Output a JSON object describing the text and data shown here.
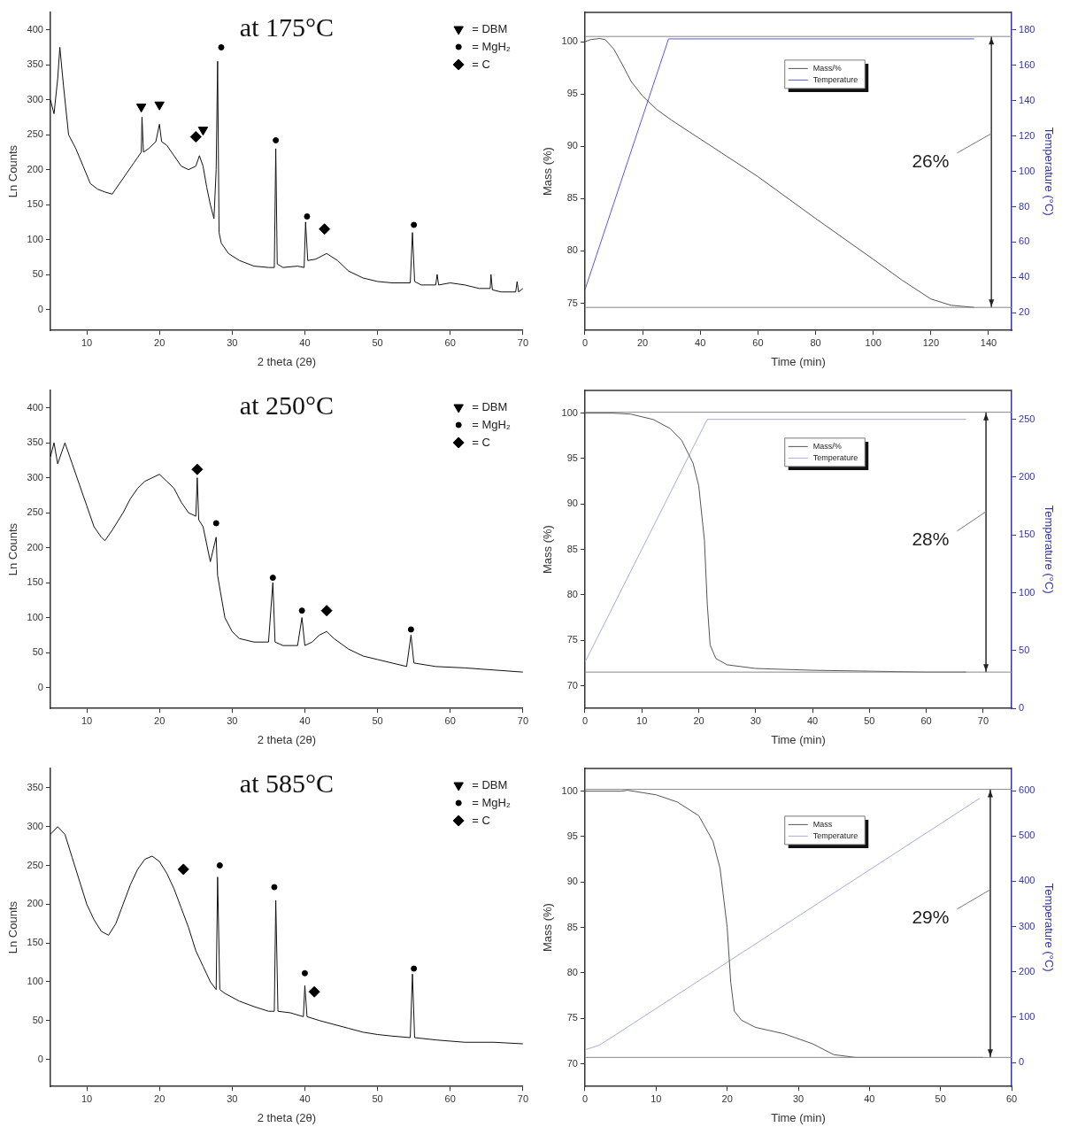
{
  "chart_data": [
    {
      "type": "line",
      "title": "at 175°C",
      "xlabel": "2 theta (2θ)",
      "ylabel": "Ln Counts",
      "xlim": [
        5,
        70
      ],
      "xticks": [
        10,
        20,
        30,
        40,
        50,
        60,
        70
      ],
      "ylim": [
        -30,
        425
      ],
      "yticks": [
        0,
        50,
        100,
        150,
        200,
        250,
        300,
        350,
        400
      ],
      "grid": false,
      "legend": "top right",
      "marker": "none",
      "series": [
        {
          "color": "#111111",
          "x": [
            5,
            5.5,
            6,
            6.3,
            6.8,
            7.5,
            8.5,
            9.5,
            10.5,
            11.5,
            12.5,
            13.5,
            14.5,
            15.5,
            16.5,
            17.5,
            17.6,
            17.8,
            18.5,
            19.5,
            20,
            20.3,
            21,
            22,
            23,
            24,
            25,
            25.5,
            26,
            26.5,
            27,
            27.5,
            27.8,
            28,
            28.2,
            28.5,
            29.5,
            31,
            33,
            35,
            35.8,
            36,
            36.2,
            37,
            39,
            39.9,
            40.1,
            40.4,
            41.5,
            43,
            44.5,
            46,
            48,
            50,
            52,
            54.5,
            54.8,
            55.1,
            56,
            58,
            58.2,
            58.4,
            60,
            62,
            64,
            65.5,
            65.6,
            65.8,
            67,
            69,
            69.2,
            69.4,
            70
          ],
          "values": [
            300,
            280,
            330,
            375,
            320,
            250,
            230,
            205,
            180,
            172,
            168,
            165,
            180,
            195,
            210,
            225,
            275,
            225,
            230,
            240,
            265,
            240,
            235,
            220,
            205,
            200,
            205,
            220,
            205,
            175,
            150,
            130,
            200,
            355,
            110,
            95,
            80,
            70,
            62,
            60,
            60,
            230,
            65,
            60,
            62,
            60,
            125,
            70,
            72,
            80,
            70,
            55,
            45,
            40,
            38,
            38,
            110,
            40,
            35,
            35,
            50,
            35,
            38,
            35,
            30,
            30,
            50,
            28,
            25,
            25,
            40,
            25,
            30
          ]
        },
        {
          "type": "scatter",
          "name": "= DBM",
          "color": "#000000",
          "marker": "triangle",
          "x": [
            17.5,
            20,
            26
          ],
          "values": [
            290,
            293,
            257
          ]
        },
        {
          "type": "scatter",
          "name": "= MgH₂",
          "color": "#000000",
          "marker": "circle",
          "x": [
            28.5,
            36,
            40.3,
            55
          ],
          "values": [
            375,
            242,
            133,
            121
          ]
        },
        {
          "type": "scatter",
          "name": "= C",
          "color": "#000000",
          "marker": "diamond",
          "x": [
            25,
            42.7
          ],
          "values": [
            247,
            115
          ]
        }
      ]
    },
    {
      "type": "line",
      "xlabel": "Time (min)",
      "ylabel": "Mass (%)",
      "y2label": "Temperature (°C)",
      "xlim": [
        0,
        148
      ],
      "xticks": [
        0,
        20,
        40,
        60,
        80,
        100,
        120,
        140
      ],
      "ylim": [
        72.4,
        102.8
      ],
      "yticks": [
        75,
        80,
        85,
        90,
        95,
        100
      ],
      "y2lim": [
        10,
        190
      ],
      "y2ticks": [
        20,
        40,
        60,
        80,
        100,
        120,
        140,
        160,
        180
      ],
      "grid": false,
      "legend": "top",
      "marker": "none",
      "series": [
        {
          "name": "Mass/%",
          "color": "#555555",
          "x": [
            0,
            2,
            5,
            7,
            10,
            13,
            16,
            20,
            25,
            30,
            40,
            60,
            80,
            100,
            110,
            120,
            127,
            135
          ],
          "values": [
            100,
            100.2,
            100.3,
            100.2,
            99.3,
            97.8,
            96.2,
            94.8,
            93.5,
            92.5,
            90.7,
            87.1,
            83.1,
            79.2,
            77.2,
            75.4,
            74.8,
            74.6
          ]
        },
        {
          "name": "Temperature",
          "color": "#5a5ad0",
          "axis": "y2",
          "x": [
            0,
            29,
            135
          ],
          "values": [
            33,
            175,
            175
          ]
        },
        {
          "color": "#444444",
          "x": [
            141,
            141
          ],
          "values": [
            100.5,
            74.6
          ]
        }
      ],
      "ref_lines": [
        {
          "axis": "y",
          "value": 100.5,
          "color": "#888888"
        },
        {
          "axis": "y",
          "value": 74.6,
          "color": "#888888"
        }
      ],
      "annotations": [
        "26%"
      ]
    },
    {
      "type": "line",
      "title": "at 250°C",
      "xlabel": "2 theta (2θ)",
      "ylabel": "Ln Counts",
      "xlim": [
        5,
        70
      ],
      "xticks": [
        10,
        20,
        30,
        40,
        50,
        60,
        70
      ],
      "ylim": [
        -30,
        425
      ],
      "yticks": [
        0,
        50,
        100,
        150,
        200,
        250,
        300,
        350,
        400
      ],
      "grid": false,
      "legend": "top right",
      "marker": "none",
      "series": [
        {
          "color": "#111111",
          "x": [
            5,
            5.5,
            6,
            7,
            8,
            9,
            10,
            11,
            12,
            12.5,
            13.5,
            15,
            16,
            17,
            18,
            19,
            20,
            21,
            22,
            23,
            24,
            25,
            25.2,
            25.4,
            26,
            27,
            27.8,
            28,
            29,
            30,
            31,
            33,
            35,
            35.6,
            35.9,
            37,
            39,
            39.6,
            40,
            41,
            42,
            43,
            44,
            46,
            48,
            50,
            52,
            54,
            54.6,
            55,
            58,
            62,
            66,
            70
          ],
          "values": [
            330,
            350,
            320,
            350,
            320,
            290,
            260,
            230,
            215,
            210,
            225,
            250,
            270,
            285,
            295,
            300,
            305,
            295,
            285,
            265,
            250,
            245,
            300,
            240,
            230,
            180,
            215,
            160,
            100,
            80,
            70,
            65,
            65,
            150,
            65,
            60,
            60,
            100,
            60,
            65,
            75,
            80,
            70,
            55,
            45,
            40,
            35,
            30,
            75,
            35,
            30,
            28,
            25,
            22
          ]
        },
        {
          "type": "scatter",
          "name": "= DBM",
          "color": "#000000",
          "marker": "triangle"
        },
        {
          "type": "scatter",
          "name": "= MgH₂",
          "color": "#000000",
          "marker": "circle",
          "x": [
            27.8,
            35.6,
            39.6,
            54.6
          ],
          "values": [
            235,
            157,
            110,
            83
          ]
        },
        {
          "type": "scatter",
          "name": "= C",
          "color": "#000000",
          "marker": "diamond",
          "x": [
            25.2,
            43
          ],
          "values": [
            312,
            110
          ]
        }
      ]
    },
    {
      "type": "line",
      "xlabel": "Time (min)",
      "ylabel": "Mass (%)",
      "y2label": "Temperature (°C)",
      "xlim": [
        0,
        75
      ],
      "xticks": [
        0,
        10,
        20,
        30,
        40,
        50,
        60,
        70
      ],
      "ylim": [
        67.5,
        102.5
      ],
      "yticks": [
        70,
        75,
        80,
        85,
        90,
        95,
        100
      ],
      "y2lim": [
        0,
        275
      ],
      "y2ticks": [
        0,
        50,
        100,
        150,
        200,
        250
      ],
      "grid": false,
      "legend": "top",
      "marker": "none",
      "series": [
        {
          "name": "Mass/%",
          "color": "#555555",
          "x": [
            0,
            5,
            8,
            12,
            15,
            17,
            19,
            20,
            21,
            21.5,
            22,
            23,
            25,
            30,
            40,
            50,
            60,
            67
          ],
          "values": [
            100,
            100,
            99.9,
            99.3,
            98.3,
            97,
            94.5,
            92,
            86,
            79,
            74.5,
            73,
            72.3,
            71.9,
            71.7,
            71.6,
            71.5,
            71.5
          ]
        },
        {
          "name": "Temperature",
          "color": "#a8acdc",
          "axis": "y2",
          "x": [
            0,
            21.5,
            67
          ],
          "values": [
            40,
            250,
            250
          ]
        },
        {
          "color": "#444444",
          "x": [
            70.5,
            70.5
          ],
          "values": [
            100.1,
            71.5
          ]
        }
      ],
      "ref_lines": [
        {
          "axis": "y",
          "value": 100.1,
          "color": "#888888"
        },
        {
          "axis": "y",
          "value": 71.5,
          "color": "#888888"
        }
      ],
      "annotations": [
        "28%"
      ]
    },
    {
      "type": "line",
      "title": "at 585°C",
      "xlabel": "2 theta (2θ)",
      "ylabel": "Ln Counts",
      "xlim": [
        5,
        70
      ],
      "xticks": [
        10,
        20,
        30,
        40,
        50,
        60,
        70
      ],
      "ylim": [
        -35,
        375
      ],
      "yticks": [
        0,
        50,
        100,
        150,
        200,
        250,
        300,
        350
      ],
      "grid": false,
      "legend": "top right",
      "marker": "none",
      "series": [
        {
          "color": "#111111",
          "x": [
            5,
            6,
            7,
            8,
            9,
            10,
            11,
            12,
            13,
            14,
            15,
            16,
            17,
            18,
            19,
            20,
            21,
            22,
            23,
            24,
            25,
            26,
            27,
            27.8,
            28,
            28.3,
            29,
            31,
            33,
            35,
            35.8,
            36,
            36.3,
            38,
            39.8,
            40,
            40.3,
            42,
            44,
            46,
            48,
            50,
            52,
            54.5,
            54.8,
            55.1,
            58,
            62,
            66,
            70
          ],
          "values": [
            290,
            300,
            290,
            260,
            230,
            200,
            180,
            165,
            160,
            175,
            200,
            225,
            245,
            258,
            262,
            255,
            240,
            220,
            195,
            170,
            140,
            120,
            100,
            90,
            235,
            90,
            85,
            75,
            68,
            62,
            62,
            205,
            62,
            60,
            55,
            95,
            55,
            50,
            45,
            40,
            35,
            32,
            30,
            28,
            110,
            28,
            25,
            22,
            22,
            20
          ]
        },
        {
          "type": "scatter",
          "name": "= DBM",
          "color": "#000000",
          "marker": "triangle"
        },
        {
          "type": "scatter",
          "name": "= MgH₂",
          "color": "#000000",
          "marker": "circle",
          "x": [
            28.3,
            35.8,
            40,
            55
          ],
          "values": [
            250,
            222,
            111,
            117
          ]
        },
        {
          "type": "scatter",
          "name": "= C",
          "color": "#000000",
          "marker": "diamond",
          "x": [
            23.3,
            41.3
          ],
          "values": [
            245,
            87
          ]
        }
      ]
    },
    {
      "type": "line",
      "xlabel": "Time (min)",
      "ylabel": "Mass (%)",
      "y2label": "Temperature (°C)",
      "xlim": [
        0,
        60
      ],
      "xticks": [
        0,
        10,
        20,
        30,
        40,
        50,
        60
      ],
      "ylim": [
        67.5,
        102.5
      ],
      "yticks": [
        70,
        75,
        80,
        85,
        90,
        95,
        100
      ],
      "y2lim": [
        -53,
        649
      ],
      "y2ticks": [
        0,
        100,
        200,
        300,
        400,
        500,
        600
      ],
      "grid": false,
      "legend": "top",
      "marker": "none",
      "series": [
        {
          "name": "Mass",
          "color": "#555555",
          "x": [
            0,
            5,
            6,
            10,
            13,
            16,
            18,
            19,
            20,
            20.5,
            21,
            22,
            24,
            28,
            32,
            35,
            38,
            45,
            56
          ],
          "values": [
            100,
            100,
            100.1,
            99.6,
            98.8,
            97.3,
            94.5,
            91.5,
            85,
            79,
            75.8,
            74.8,
            74,
            73.3,
            72.2,
            71,
            70.7,
            70.7,
            70.7
          ]
        },
        {
          "name": "Temperature",
          "color": "#a8acdc",
          "axis": "y2",
          "x": [
            0,
            2,
            4,
            55.5
          ],
          "values": [
            28,
            38,
            58,
            583
          ]
        },
        {
          "color": "#444444",
          "x": [
            57,
            57
          ],
          "values": [
            100.2,
            70.7
          ]
        }
      ],
      "ref_lines": [
        {
          "axis": "y",
          "value": 100.2,
          "color": "#888888"
        },
        {
          "axis": "y",
          "value": 70.7,
          "color": "#888888"
        }
      ],
      "annotations": [
        "29%"
      ]
    }
  ]
}
